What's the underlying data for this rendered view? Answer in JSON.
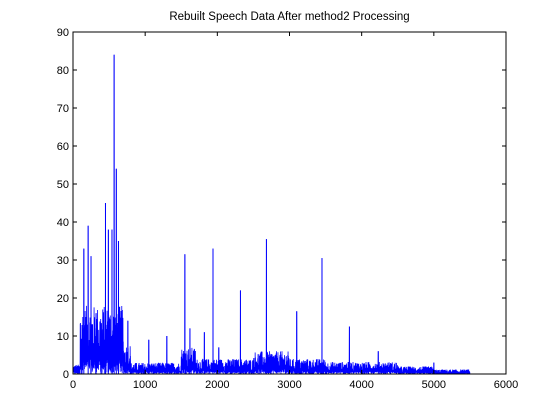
{
  "chart_data": {
    "type": "line",
    "title": "Rebuilt Speech Data After method2 Processing",
    "xlabel": "",
    "ylabel": "",
    "xlim": [
      0,
      6000
    ],
    "ylim": [
      0,
      90
    ],
    "xticks": [
      "0",
      "1000",
      "2000",
      "3000",
      "4000",
      "5000",
      "6000"
    ],
    "yticks": [
      "0",
      "10",
      "20",
      "30",
      "40",
      "50",
      "60",
      "70",
      "80",
      "90"
    ],
    "grid": false,
    "series_color": "#0000ff",
    "data_extent_x": [
      0,
      5500
    ],
    "peaks": [
      {
        "x": 150,
        "y": 33
      },
      {
        "x": 210,
        "y": 39
      },
      {
        "x": 250,
        "y": 31
      },
      {
        "x": 320,
        "y": 16
      },
      {
        "x": 400,
        "y": 10
      },
      {
        "x": 450,
        "y": 45
      },
      {
        "x": 490,
        "y": 38
      },
      {
        "x": 540,
        "y": 38
      },
      {
        "x": 570,
        "y": 84
      },
      {
        "x": 600,
        "y": 54
      },
      {
        "x": 630,
        "y": 35
      },
      {
        "x": 760,
        "y": 14
      },
      {
        "x": 1050,
        "y": 9
      },
      {
        "x": 1300,
        "y": 10
      },
      {
        "x": 1550,
        "y": 31.5
      },
      {
        "x": 1620,
        "y": 12
      },
      {
        "x": 1820,
        "y": 11
      },
      {
        "x": 1940,
        "y": 33
      },
      {
        "x": 2020,
        "y": 7
      },
      {
        "x": 2320,
        "y": 22
      },
      {
        "x": 2680,
        "y": 35.5
      },
      {
        "x": 3100,
        "y": 16.5
      },
      {
        "x": 3450,
        "y": 30.5
      },
      {
        "x": 3830,
        "y": 12.5
      },
      {
        "x": 4230,
        "y": 6
      },
      {
        "x": 5000,
        "y": 3
      }
    ]
  }
}
